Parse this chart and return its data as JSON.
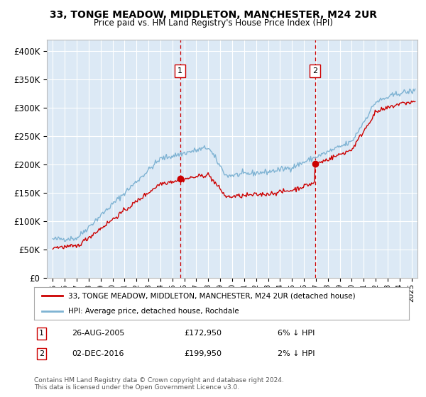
{
  "title": "33, TONGE MEADOW, MIDDLETON, MANCHESTER, M24 2UR",
  "subtitle": "Price paid vs. HM Land Registry's House Price Index (HPI)",
  "legend_line1": "33, TONGE MEADOW, MIDDLETON, MANCHESTER, M24 2UR (detached house)",
  "legend_line2": "HPI: Average price, detached house, Rochdale",
  "annotation1_date": "26-AUG-2005",
  "annotation1_price": "£172,950",
  "annotation1_hpi": "6% ↓ HPI",
  "annotation1_year": 2005.65,
  "annotation2_date": "02-DEC-2016",
  "annotation2_price": "£199,950",
  "annotation2_hpi": "2% ↓ HPI",
  "annotation2_year": 2016.92,
  "footer_line1": "Contains HM Land Registry data © Crown copyright and database right 2024.",
  "footer_line2": "This data is licensed under the Open Government Licence v3.0.",
  "red_color": "#cc0000",
  "blue_color": "#7fb3d3",
  "bg_color": "#ffffff",
  "plot_bg_color": "#dce9f5",
  "grid_color": "#ffffff",
  "ylim": [
    0,
    420000
  ],
  "yticks": [
    0,
    50000,
    100000,
    150000,
    200000,
    250000,
    300000,
    350000,
    400000
  ],
  "ytick_labels": [
    "£0",
    "£50K",
    "£100K",
    "£150K",
    "£200K",
    "£250K",
    "£300K",
    "£350K",
    "£400K"
  ],
  "xlim_start": 1994.5,
  "xlim_end": 2025.5
}
